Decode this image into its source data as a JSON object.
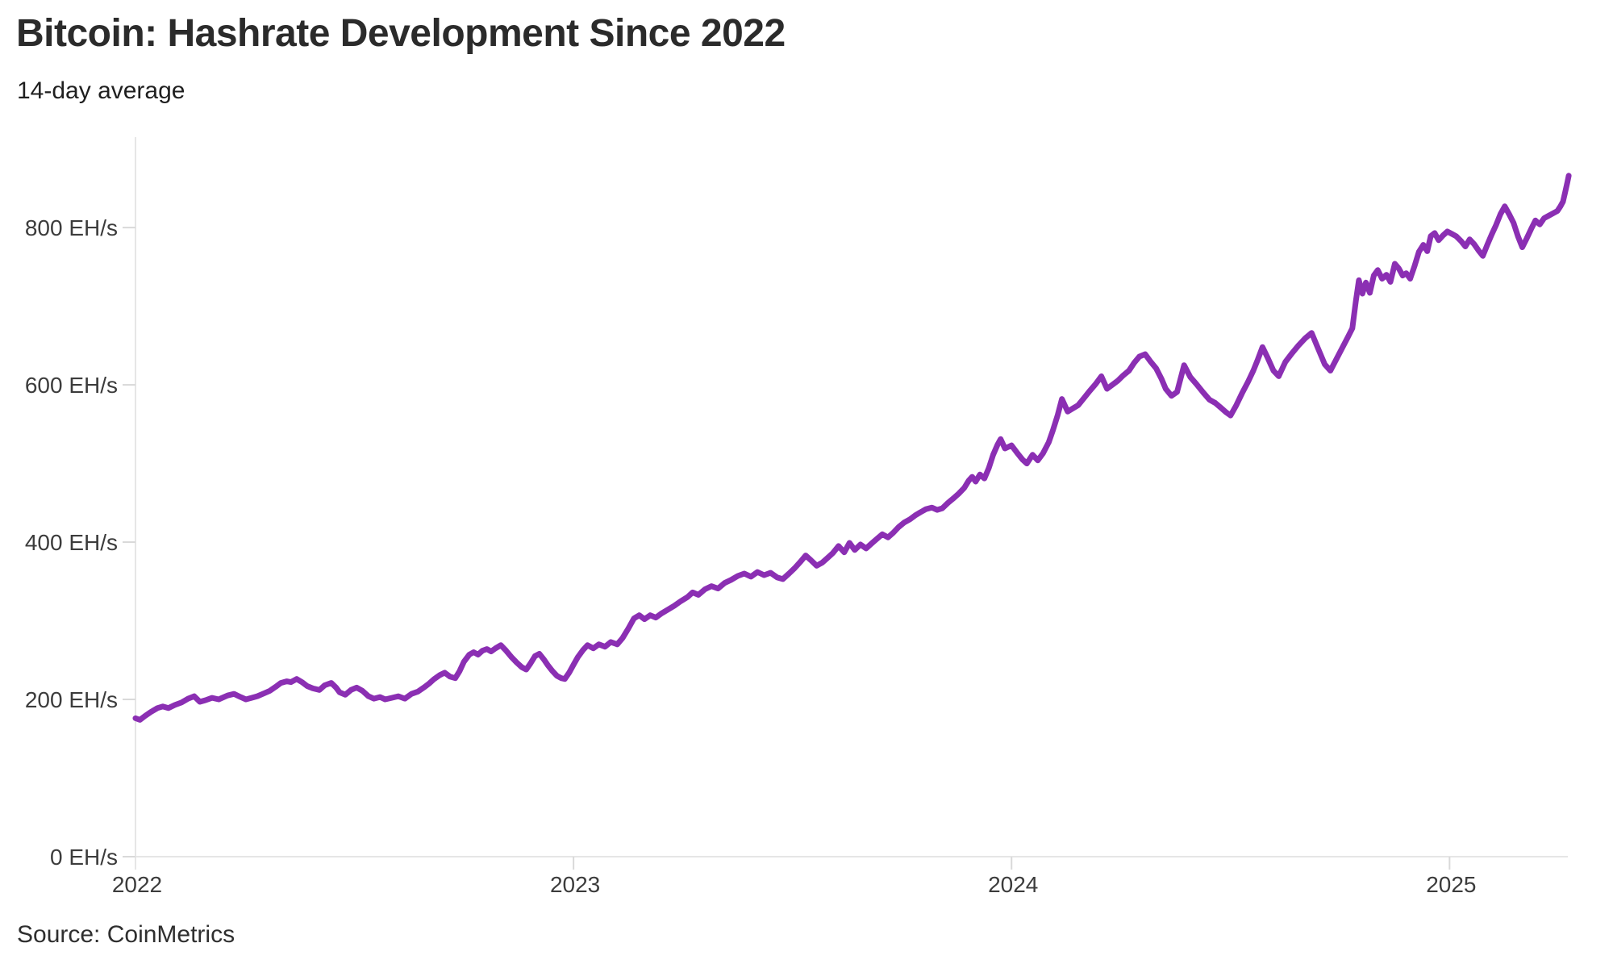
{
  "chart_data": {
    "type": "line",
    "title": "Bitcoin: Hashrate Development Since 2022",
    "subtitle": "14-day average",
    "source_caption": "Source: CoinMetrics",
    "series_name": "Bitcoin network hashrate, 14-day average",
    "unit": "EH/s",
    "xlabel": "",
    "ylabel": "EH/s",
    "xlim": [
      2022.0,
      2025.27
    ],
    "ylim": [
      0,
      915
    ],
    "grid": false,
    "legend": "none",
    "line_color": "#8B2FB3",
    "axis_color": "#e6e6e6",
    "tick_color": "#d9d9d9",
    "label_color": "#3c3c3c",
    "y_ticks": [
      {
        "value": 0,
        "label": "0 EH/s"
      },
      {
        "value": 200,
        "label": "200 EH/s"
      },
      {
        "value": 400,
        "label": "400 EH/s"
      },
      {
        "value": 600,
        "label": "600 EH/s"
      },
      {
        "value": 800,
        "label": "800 EH/s"
      }
    ],
    "x_ticks": [
      {
        "value": 2022,
        "label": "2022"
      },
      {
        "value": 2023,
        "label": "2023"
      },
      {
        "value": 2024,
        "label": "2024"
      },
      {
        "value": 2025,
        "label": "2025"
      }
    ],
    "points": [
      [
        2022.0,
        176
      ],
      [
        2022.01,
        174
      ],
      [
        2022.022,
        179
      ],
      [
        2022.035,
        184
      ],
      [
        2022.05,
        189
      ],
      [
        2022.062,
        191
      ],
      [
        2022.075,
        189
      ],
      [
        2022.09,
        193
      ],
      [
        2022.105,
        196
      ],
      [
        2022.12,
        201
      ],
      [
        2022.134,
        204
      ],
      [
        2022.147,
        197
      ],
      [
        2022.16,
        199
      ],
      [
        2022.175,
        202
      ],
      [
        2022.19,
        200
      ],
      [
        2022.21,
        205
      ],
      [
        2022.225,
        207
      ],
      [
        2022.24,
        203
      ],
      [
        2022.252,
        200
      ],
      [
        2022.265,
        202
      ],
      [
        2022.278,
        204
      ],
      [
        2022.295,
        208
      ],
      [
        2022.307,
        211
      ],
      [
        2022.32,
        216
      ],
      [
        2022.332,
        221
      ],
      [
        2022.345,
        223
      ],
      [
        2022.355,
        222
      ],
      [
        2022.368,
        226
      ],
      [
        2022.38,
        222
      ],
      [
        2022.392,
        217
      ],
      [
        2022.405,
        214
      ],
      [
        2022.42,
        212
      ],
      [
        2022.432,
        218
      ],
      [
        2022.447,
        221
      ],
      [
        2022.458,
        215
      ],
      [
        2022.466,
        209
      ],
      [
        2022.479,
        206
      ],
      [
        2022.492,
        212
      ],
      [
        2022.505,
        215
      ],
      [
        2022.518,
        211
      ],
      [
        2022.532,
        204
      ],
      [
        2022.544,
        201
      ],
      [
        2022.558,
        203
      ],
      [
        2022.57,
        200
      ],
      [
        2022.585,
        202
      ],
      [
        2022.6,
        204
      ],
      [
        2022.615,
        201
      ],
      [
        2022.63,
        207
      ],
      [
        2022.645,
        210
      ],
      [
        2022.658,
        215
      ],
      [
        2022.67,
        220
      ],
      [
        2022.682,
        226
      ],
      [
        2022.695,
        231
      ],
      [
        2022.706,
        234
      ],
      [
        2022.718,
        229
      ],
      [
        2022.73,
        227
      ],
      [
        2022.74,
        236
      ],
      [
        2022.75,
        248
      ],
      [
        2022.762,
        257
      ],
      [
        2022.772,
        260
      ],
      [
        2022.782,
        257
      ],
      [
        2022.792,
        262
      ],
      [
        2022.802,
        264
      ],
      [
        2022.812,
        261
      ],
      [
        2022.822,
        265
      ],
      [
        2022.834,
        269
      ],
      [
        2022.846,
        262
      ],
      [
        2022.858,
        254
      ],
      [
        2022.87,
        247
      ],
      [
        2022.882,
        241
      ],
      [
        2022.892,
        238
      ],
      [
        2022.902,
        246
      ],
      [
        2022.912,
        255
      ],
      [
        2022.922,
        258
      ],
      [
        2022.932,
        251
      ],
      [
        2022.942,
        243
      ],
      [
        2022.952,
        236
      ],
      [
        2022.962,
        230
      ],
      [
        2022.972,
        227
      ],
      [
        2022.98,
        226
      ],
      [
        2022.99,
        234
      ],
      [
        2023.0,
        244
      ],
      [
        2023.01,
        254
      ],
      [
        2023.022,
        263
      ],
      [
        2023.032,
        269
      ],
      [
        2023.045,
        265
      ],
      [
        2023.058,
        270
      ],
      [
        2023.072,
        267
      ],
      [
        2023.085,
        273
      ],
      [
        2023.1,
        270
      ],
      [
        2023.112,
        278
      ],
      [
        2023.125,
        290
      ],
      [
        2023.138,
        303
      ],
      [
        2023.15,
        307
      ],
      [
        2023.162,
        302
      ],
      [
        2023.175,
        307
      ],
      [
        2023.188,
        304
      ],
      [
        2023.2,
        309
      ],
      [
        2023.215,
        314
      ],
      [
        2023.23,
        319
      ],
      [
        2023.245,
        325
      ],
      [
        2023.26,
        330
      ],
      [
        2023.272,
        336
      ],
      [
        2023.285,
        333
      ],
      [
        2023.3,
        340
      ],
      [
        2023.315,
        344
      ],
      [
        2023.33,
        341
      ],
      [
        2023.345,
        348
      ],
      [
        2023.36,
        352
      ],
      [
        2023.375,
        357
      ],
      [
        2023.39,
        360
      ],
      [
        2023.405,
        356
      ],
      [
        2023.42,
        362
      ],
      [
        2023.435,
        358
      ],
      [
        2023.45,
        361
      ],
      [
        2023.465,
        355
      ],
      [
        2023.478,
        353
      ],
      [
        2023.492,
        360
      ],
      [
        2023.505,
        367
      ],
      [
        2023.518,
        375
      ],
      [
        2023.53,
        383
      ],
      [
        2023.542,
        377
      ],
      [
        2023.555,
        370
      ],
      [
        2023.568,
        374
      ],
      [
        2023.58,
        380
      ],
      [
        2023.592,
        386
      ],
      [
        2023.605,
        395
      ],
      [
        2023.618,
        387
      ],
      [
        2023.63,
        399
      ],
      [
        2023.642,
        390
      ],
      [
        2023.655,
        397
      ],
      [
        2023.668,
        392
      ],
      [
        2023.68,
        398
      ],
      [
        2023.692,
        404
      ],
      [
        2023.705,
        410
      ],
      [
        2023.718,
        406
      ],
      [
        2023.73,
        412
      ],
      [
        2023.742,
        419
      ],
      [
        2023.755,
        425
      ],
      [
        2023.768,
        429
      ],
      [
        2023.78,
        434
      ],
      [
        2023.792,
        438
      ],
      [
        2023.805,
        442
      ],
      [
        2023.818,
        444
      ],
      [
        2023.83,
        441
      ],
      [
        2023.842,
        443
      ],
      [
        2023.855,
        450
      ],
      [
        2023.868,
        456
      ],
      [
        2023.88,
        462
      ],
      [
        2023.892,
        469
      ],
      [
        2023.902,
        478
      ],
      [
        2023.91,
        483
      ],
      [
        2023.918,
        477
      ],
      [
        2023.928,
        486
      ],
      [
        2023.938,
        481
      ],
      [
        2023.948,
        494
      ],
      [
        2023.958,
        511
      ],
      [
        2023.968,
        524
      ],
      [
        2023.975,
        531
      ],
      [
        2023.985,
        519
      ],
      [
        2024.0,
        523
      ],
      [
        2024.012,
        514
      ],
      [
        2024.025,
        505
      ],
      [
        2024.035,
        500
      ],
      [
        2024.048,
        511
      ],
      [
        2024.06,
        504
      ],
      [
        2024.072,
        513
      ],
      [
        2024.085,
        527
      ],
      [
        2024.095,
        543
      ],
      [
        2024.105,
        561
      ],
      [
        2024.115,
        582
      ],
      [
        2024.128,
        566
      ],
      [
        2024.14,
        570
      ],
      [
        2024.152,
        574
      ],
      [
        2024.165,
        583
      ],
      [
        2024.178,
        592
      ],
      [
        2024.192,
        601
      ],
      [
        2024.205,
        611
      ],
      [
        2024.218,
        595
      ],
      [
        2024.23,
        600
      ],
      [
        2024.242,
        605
      ],
      [
        2024.255,
        612
      ],
      [
        2024.268,
        618
      ],
      [
        2024.28,
        628
      ],
      [
        2024.292,
        636
      ],
      [
        2024.305,
        639
      ],
      [
        2024.318,
        629
      ],
      [
        2024.33,
        621
      ],
      [
        2024.342,
        608
      ],
      [
        2024.352,
        595
      ],
      [
        2024.365,
        586
      ],
      [
        2024.378,
        591
      ],
      [
        2024.394,
        625
      ],
      [
        2024.408,
        610
      ],
      [
        2024.422,
        601
      ],
      [
        2024.438,
        590
      ],
      [
        2024.452,
        581
      ],
      [
        2024.465,
        577
      ],
      [
        2024.478,
        571
      ],
      [
        2024.49,
        565
      ],
      [
        2024.5,
        561
      ],
      [
        2024.513,
        574
      ],
      [
        2024.526,
        589
      ],
      [
        2024.54,
        604
      ],
      [
        2024.552,
        618
      ],
      [
        2024.562,
        632
      ],
      [
        2024.573,
        648
      ],
      [
        2024.585,
        634
      ],
      [
        2024.598,
        618
      ],
      [
        2024.61,
        611
      ],
      [
        2024.625,
        629
      ],
      [
        2024.64,
        640
      ],
      [
        2024.655,
        650
      ],
      [
        2024.67,
        659
      ],
      [
        2024.685,
        666
      ],
      [
        2024.7,
        646
      ],
      [
        2024.715,
        626
      ],
      [
        2024.728,
        618
      ],
      [
        2024.742,
        633
      ],
      [
        2024.755,
        647
      ],
      [
        2024.768,
        661
      ],
      [
        2024.778,
        672
      ],
      [
        2024.786,
        706
      ],
      [
        2024.793,
        733
      ],
      [
        2024.801,
        716
      ],
      [
        2024.809,
        730
      ],
      [
        2024.818,
        717
      ],
      [
        2024.827,
        739
      ],
      [
        2024.836,
        746
      ],
      [
        2024.846,
        735
      ],
      [
        2024.856,
        740
      ],
      [
        2024.865,
        731
      ],
      [
        2024.875,
        754
      ],
      [
        2024.884,
        748
      ],
      [
        2024.893,
        739
      ],
      [
        2024.901,
        742
      ],
      [
        2024.91,
        735
      ],
      [
        2024.92,
        751
      ],
      [
        2024.93,
        769
      ],
      [
        2024.94,
        778
      ],
      [
        2024.949,
        770
      ],
      [
        2024.957,
        789
      ],
      [
        2024.966,
        793
      ],
      [
        2024.975,
        784
      ],
      [
        2024.985,
        790
      ],
      [
        2024.995,
        795
      ],
      [
        2025.005,
        792
      ],
      [
        2025.015,
        789
      ],
      [
        2025.026,
        783
      ],
      [
        2025.036,
        776
      ],
      [
        2025.046,
        785
      ],
      [
        2025.056,
        779
      ],
      [
        2025.066,
        771
      ],
      [
        2025.076,
        764
      ],
      [
        2025.086,
        778
      ],
      [
        2025.096,
        791
      ],
      [
        2025.106,
        803
      ],
      [
        2025.116,
        817
      ],
      [
        2025.126,
        827
      ],
      [
        2025.136,
        817
      ],
      [
        2025.146,
        806
      ],
      [
        2025.156,
        789
      ],
      [
        2025.166,
        775
      ],
      [
        2025.176,
        786
      ],
      [
        2025.186,
        798
      ],
      [
        2025.196,
        809
      ],
      [
        2025.206,
        804
      ],
      [
        2025.216,
        812
      ],
      [
        2025.226,
        815
      ],
      [
        2025.236,
        818
      ],
      [
        2025.246,
        821
      ],
      [
        2025.253,
        827
      ],
      [
        2025.259,
        833
      ],
      [
        2025.264,
        845
      ],
      [
        2025.269,
        858
      ],
      [
        2025.272,
        866
      ]
    ]
  }
}
